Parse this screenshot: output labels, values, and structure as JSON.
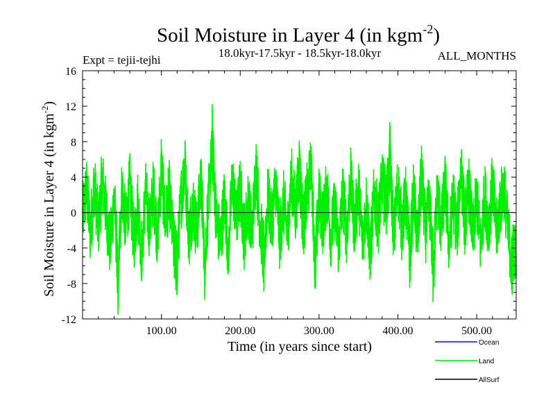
{
  "chart_data": {
    "type": "line",
    "title_main": "Soil Moisture in Layer 4 (in kgm",
    "title_sup": "-2",
    "title_close": ")",
    "subtitle_left": "Expt = tejii-tejhi",
    "subtitle_center": "18.0kyr-17.5kyr - 18.5kyr-18.0kyr",
    "subtitle_right": "ALL_MONTHS",
    "xlabel": "Time (in years since start)",
    "ylabel_main": "Soil Moisture in Layer 4 (in kgm",
    "ylabel_sup": "-2",
    "ylabel_close": ")",
    "xlim": [
      0,
      550
    ],
    "ylim": [
      -12,
      16
    ],
    "x_ticks": [
      100,
      200,
      300,
      400,
      500
    ],
    "x_tick_labels": [
      "100.00",
      "200.00",
      "300.00",
      "400.00",
      "500.00"
    ],
    "y_ticks": [
      -12,
      -8,
      -4,
      0,
      4,
      8,
      12,
      16
    ],
    "y_tick_labels": [
      "-12",
      "-8",
      "-4",
      "0",
      "4",
      "8",
      "12",
      "16"
    ],
    "zero_line": true,
    "series": [
      {
        "name": "Ocean",
        "color": "#0000ff",
        "values": []
      },
      {
        "name": "Land",
        "color": "#00ee00",
        "anchors": [
          [
            0,
            -1
          ],
          [
            5,
            5
          ],
          [
            10,
            -4
          ],
          [
            15,
            6
          ],
          [
            20,
            -3
          ],
          [
            25,
            7
          ],
          [
            30,
            0
          ],
          [
            35,
            -7
          ],
          [
            40,
            3
          ],
          [
            45,
            -11.5
          ],
          [
            50,
            5
          ],
          [
            55,
            -3
          ],
          [
            60,
            6
          ],
          [
            65,
            -6
          ],
          [
            70,
            2
          ],
          [
            75,
            -8
          ],
          [
            80,
            4
          ],
          [
            85,
            -3
          ],
          [
            90,
            5
          ],
          [
            95,
            -5
          ],
          [
            100,
            9
          ],
          [
            105,
            -2
          ],
          [
            110,
            4
          ],
          [
            115,
            -6
          ],
          [
            120,
            -10
          ],
          [
            125,
            3
          ],
          [
            130,
            9
          ],
          [
            135,
            -5
          ],
          [
            140,
            2
          ],
          [
            145,
            -4
          ],
          [
            150,
            7
          ],
          [
            155,
            -9.5
          ],
          [
            160,
            3
          ],
          [
            165,
            12.5
          ],
          [
            170,
            -2
          ],
          [
            175,
            -6
          ],
          [
            180,
            3
          ],
          [
            185,
            -8
          ],
          [
            190,
            7
          ],
          [
            195,
            -2
          ],
          [
            200,
            5
          ],
          [
            205,
            -5
          ],
          [
            210,
            2
          ],
          [
            215,
            -4
          ],
          [
            220,
            9
          ],
          [
            225,
            -2
          ],
          [
            230,
            -8.5
          ],
          [
            235,
            3
          ],
          [
            240,
            -2
          ],
          [
            245,
            6
          ],
          [
            250,
            -5
          ],
          [
            255,
            2
          ],
          [
            260,
            -4
          ],
          [
            265,
            7
          ],
          [
            270,
            0
          ],
          [
            275,
            9
          ],
          [
            280,
            -3
          ],
          [
            285,
            4
          ],
          [
            290,
            8.5
          ],
          [
            295,
            -10
          ],
          [
            300,
            3
          ],
          [
            305,
            -2
          ],
          [
            310,
            5
          ],
          [
            315,
            -5
          ],
          [
            320,
            1
          ],
          [
            325,
            -7
          ],
          [
            330,
            4
          ],
          [
            335,
            -4
          ],
          [
            340,
            7
          ],
          [
            345,
            -3
          ],
          [
            350,
            5
          ],
          [
            355,
            -6
          ],
          [
            360,
            2
          ],
          [
            365,
            -8
          ],
          [
            370,
            4
          ],
          [
            375,
            -2
          ],
          [
            380,
            6
          ],
          [
            385,
            2
          ],
          [
            390,
            10
          ],
          [
            395,
            -5
          ],
          [
            400,
            6
          ],
          [
            405,
            -3
          ],
          [
            410,
            3
          ],
          [
            415,
            -9
          ],
          [
            420,
            4
          ],
          [
            425,
            -6
          ],
          [
            430,
            8
          ],
          [
            435,
            -4
          ],
          [
            440,
            2
          ],
          [
            445,
            -11
          ],
          [
            450,
            4
          ],
          [
            455,
            -3
          ],
          [
            460,
            6
          ],
          [
            465,
            -7
          ],
          [
            470,
            3
          ],
          [
            475,
            -4
          ],
          [
            480,
            9
          ],
          [
            485,
            -2
          ],
          [
            490,
            5
          ],
          [
            495,
            -5
          ],
          [
            500,
            3
          ],
          [
            505,
            -7
          ],
          [
            510,
            4
          ],
          [
            515,
            -3
          ],
          [
            520,
            6
          ],
          [
            525,
            -4
          ],
          [
            530,
            2
          ],
          [
            535,
            5
          ],
          [
            540,
            -5
          ],
          [
            545,
            -9
          ],
          [
            550,
            -7
          ]
        ]
      },
      {
        "name": "AllSurf",
        "color": "#000000",
        "values": []
      }
    ]
  }
}
